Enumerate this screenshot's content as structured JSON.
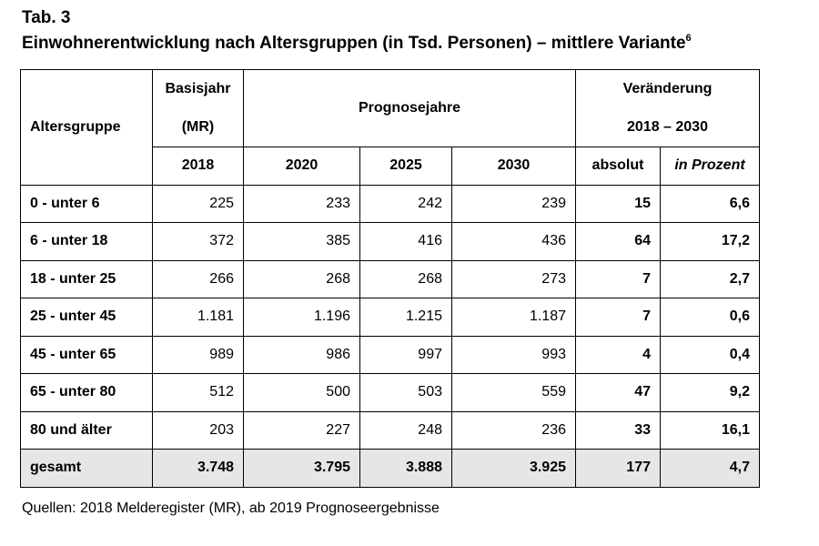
{
  "title_line1": "Tab. 3",
  "title_line2": "Einwohnerentwicklung nach Altersgruppen (in Tsd. Personen) – mittlere Variante",
  "title_footnote": "6",
  "header": {
    "altersgruppe": "Altersgruppe",
    "basisjahr": "Basisjahr",
    "basisjahr_mr": "(MR)",
    "prognosejahre": "Prognosejahre",
    "veraenderung": "Veränderung",
    "veraenderung_range": "2018 – 2030",
    "col_2018": "2018",
    "col_2020": "2020",
    "col_2025": "2025",
    "col_2030": "2030",
    "col_absolut": "absolut",
    "col_prozent": "in Prozent"
  },
  "rows": [
    {
      "group": "0 - unter 6",
      "v2018": "225",
      "v2020": "233",
      "v2025": "242",
      "v2030": "239",
      "absolut": "15",
      "prozent": "6,6"
    },
    {
      "group": "6 - unter 18",
      "v2018": "372",
      "v2020": "385",
      "v2025": "416",
      "v2030": "436",
      "absolut": "64",
      "prozent": "17,2"
    },
    {
      "group": "18 - unter 25",
      "v2018": "266",
      "v2020": "268",
      "v2025": "268",
      "v2030": "273",
      "absolut": "7",
      "prozent": "2,7"
    },
    {
      "group": "25 - unter 45",
      "v2018": "1.181",
      "v2020": "1.196",
      "v2025": "1.215",
      "v2030": "1.187",
      "absolut": "7",
      "prozent": "0,6"
    },
    {
      "group": "45 - unter 65",
      "v2018": "989",
      "v2020": "986",
      "v2025": "997",
      "v2030": "993",
      "absolut": "4",
      "prozent": "0,4"
    },
    {
      "group": "65 - unter 80",
      "v2018": "512",
      "v2020": "500",
      "v2025": "503",
      "v2030": "559",
      "absolut": "47",
      "prozent": "9,2"
    },
    {
      "group": "80 und älter",
      "v2018": "203",
      "v2020": "227",
      "v2025": "248",
      "v2030": "236",
      "absolut": "33",
      "prozent": "16,1"
    }
  ],
  "total": {
    "group": "gesamt",
    "v2018": "3.748",
    "v2020": "3.795",
    "v2025": "3.888",
    "v2030": "3.925",
    "absolut": "177",
    "prozent": "4,7"
  },
  "source": "Quellen: 2018 Melderegister (MR), ab 2019 Prognoseergebnisse",
  "colors": {
    "total_row_bg": "#e6e6e6",
    "border": "#000000"
  }
}
